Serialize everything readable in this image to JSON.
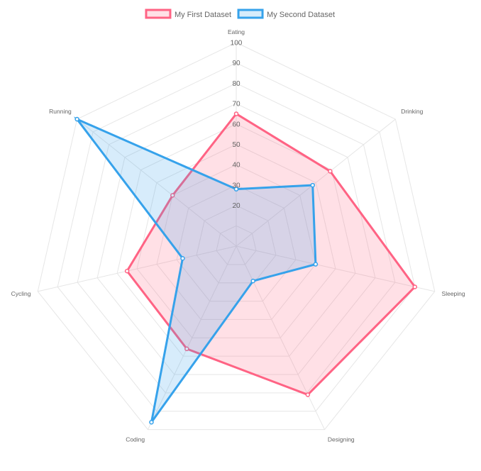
{
  "chart_data": {
    "type": "radar",
    "labels": [
      "Eating",
      "Drinking",
      "Sleeping",
      "Designing",
      "Coding",
      "Cycling",
      "Running"
    ],
    "series": [
      {
        "name": "My First Dataset",
        "values": [
          65,
          59,
          90,
          81,
          56,
          55,
          40
        ],
        "stroke": "#ff6384",
        "fill": "rgba(255,99,132,0.2)"
      },
      {
        "name": "My Second Dataset",
        "values": [
          28,
          48,
          40,
          19,
          96,
          27,
          100
        ],
        "stroke": "#36a2eb",
        "fill": "rgba(54,162,235,0.2)"
      }
    ],
    "scale": {
      "min": 0,
      "max": 100,
      "step": 10,
      "tick_labels": [
        "20",
        "30",
        "40",
        "50",
        "60",
        "70",
        "80",
        "90",
        "100"
      ]
    },
    "legend_position": "top",
    "grid": true
  }
}
